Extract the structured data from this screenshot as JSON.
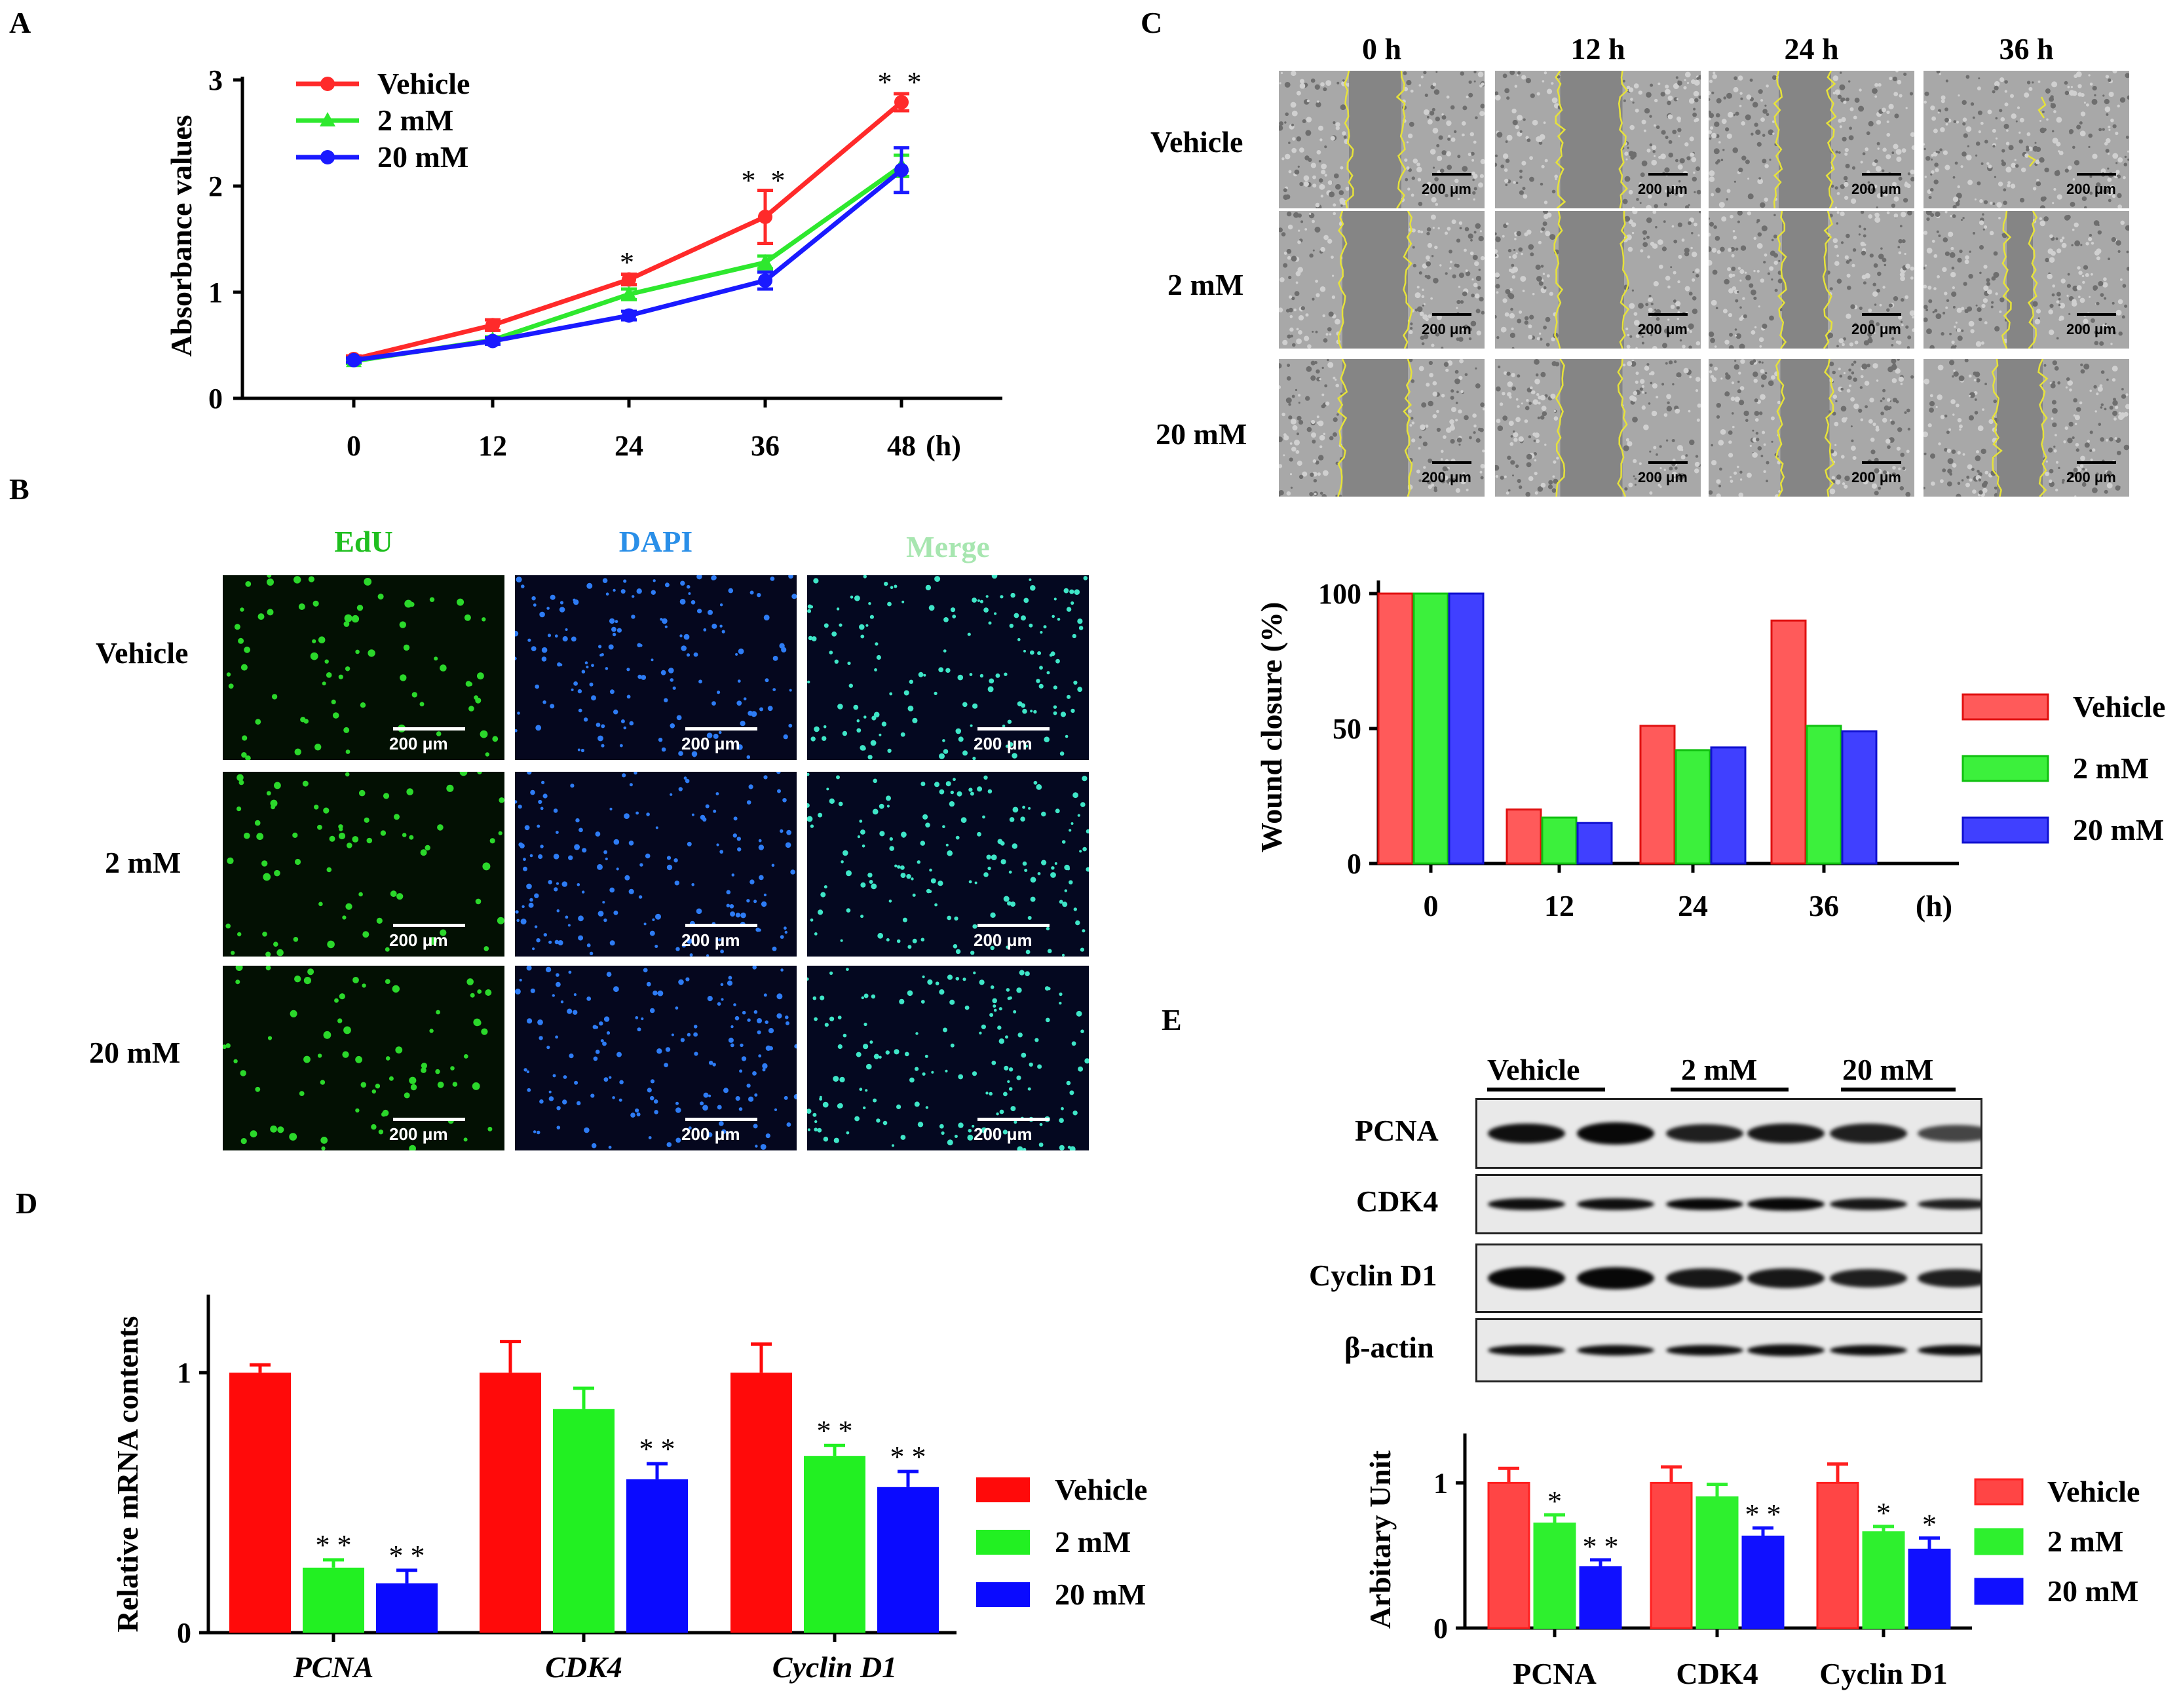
{
  "panels": {
    "A": "A",
    "B": "B",
    "C": "C",
    "D": "D",
    "E": "E"
  },
  "colors": {
    "vehicle": "#ff2a2a",
    "mM2": "#2ee82e",
    "mM20": "#1a1aff",
    "edu": "#1fbf1f",
    "dapi": "#2a8fe8",
    "merge": "#a7e6b0",
    "trace": "#e6e23a"
  },
  "chart_data": [
    {
      "id": "A",
      "type": "line",
      "ylabel": "Absorbance values",
      "xlabel": "(h)",
      "x": [
        0,
        12,
        24,
        36,
        48
      ],
      "x_ticks": [
        "0",
        "12",
        "24",
        "36",
        "48"
      ],
      "y_ticks": [
        "0",
        "1",
        "2",
        "3"
      ],
      "ylim": [
        0,
        3
      ],
      "series": [
        {
          "name": "Vehicle",
          "values": [
            0.37,
            0.69,
            1.12,
            1.71,
            2.79
          ],
          "err": [
            0.03,
            0.05,
            0.05,
            0.25,
            0.08
          ]
        },
        {
          "name": "2 mM",
          "values": [
            0.35,
            0.55,
            0.98,
            1.28,
            2.19
          ],
          "err": [
            0.02,
            0.03,
            0.05,
            0.06,
            0.1
          ]
        },
        {
          "name": "20 mM",
          "values": [
            0.36,
            0.54,
            0.78,
            1.11,
            2.15
          ],
          "err": [
            0.02,
            0.03,
            0.04,
            0.08,
            0.21
          ]
        }
      ],
      "annotations": [
        {
          "x": 24,
          "text": "*"
        },
        {
          "x": 36,
          "text": "**"
        },
        {
          "x": 48,
          "text": "**"
        }
      ]
    },
    {
      "id": "C2",
      "type": "bar",
      "ylabel": "Wound closure (%)",
      "xlabel": "(h)",
      "categories": [
        "0",
        "12",
        "24",
        "36"
      ],
      "y_ticks": [
        "0",
        "50",
        "100"
      ],
      "ylim": [
        0,
        100
      ],
      "series": [
        {
          "name": "Vehicle",
          "values": [
            100,
            20,
            51,
            90
          ]
        },
        {
          "name": "2 mM",
          "values": [
            100,
            17,
            42,
            51
          ]
        },
        {
          "name": "20 mM",
          "values": [
            100,
            15,
            43,
            49
          ]
        }
      ]
    },
    {
      "id": "D",
      "type": "bar",
      "ylabel": "Relative mRNA contents",
      "categories": [
        "PCNA",
        "CDK4",
        "Cyclin D1"
      ],
      "y_ticks": [
        "0",
        "1"
      ],
      "ylim": [
        0,
        1.25
      ],
      "series": [
        {
          "name": "Vehicle",
          "values": [
            1.0,
            1.0,
            1.0
          ],
          "err": [
            0.03,
            0.12,
            0.11
          ]
        },
        {
          "name": "2 mM",
          "values": [
            0.25,
            0.86,
            0.68
          ],
          "err": [
            0.03,
            0.08,
            0.04
          ]
        },
        {
          "name": "20 mM",
          "values": [
            0.19,
            0.59,
            0.56
          ],
          "err": [
            0.05,
            0.06,
            0.06
          ]
        }
      ],
      "annotations": [
        {
          "cat": 0,
          "series": 1,
          "text": "**"
        },
        {
          "cat": 0,
          "series": 2,
          "text": "**"
        },
        {
          "cat": 1,
          "series": 2,
          "text": "**"
        },
        {
          "cat": 2,
          "series": 1,
          "text": "**"
        },
        {
          "cat": 2,
          "series": 2,
          "text": "**"
        }
      ]
    },
    {
      "id": "E2",
      "type": "bar",
      "ylabel": "Arbitary Unit",
      "categories": [
        "PCNA",
        "CDK4",
        "Cyclin D1"
      ],
      "y_ticks": [
        "0",
        "1"
      ],
      "ylim": [
        0,
        1.25
      ],
      "series": [
        {
          "name": "Vehicle",
          "values": [
            1.0,
            1.0,
            1.0
          ],
          "err": [
            0.1,
            0.11,
            0.13
          ]
        },
        {
          "name": "2 mM",
          "values": [
            0.72,
            0.9,
            0.66
          ],
          "err": [
            0.06,
            0.09,
            0.04
          ]
        },
        {
          "name": "20 mM",
          "values": [
            0.42,
            0.63,
            0.54
          ],
          "err": [
            0.05,
            0.06,
            0.08
          ]
        }
      ],
      "annotations": [
        {
          "cat": 0,
          "series": 1,
          "text": "*"
        },
        {
          "cat": 0,
          "series": 2,
          "text": "**"
        },
        {
          "cat": 1,
          "series": 2,
          "text": "**"
        },
        {
          "cat": 2,
          "series": 1,
          "text": "*"
        },
        {
          "cat": 2,
          "series": 2,
          "text": "*"
        }
      ]
    }
  ],
  "panelB": {
    "columns": [
      "EdU",
      "DAPI",
      "Merge"
    ],
    "rows": [
      "Vehicle",
      "2 mM",
      "20 mM"
    ],
    "scale": "200 μm"
  },
  "panelC": {
    "columns": [
      "0 h",
      "12 h",
      "24 h",
      "36 h"
    ],
    "rows": [
      "Vehicle",
      "2 mM",
      "20 mM"
    ],
    "scale": "200 μm"
  },
  "panelE": {
    "groups": [
      "Vehicle",
      "2 mM",
      "20 mM"
    ],
    "proteins": [
      "PCNA",
      "CDK4",
      "Cyclin D1",
      "β-actin"
    ]
  }
}
